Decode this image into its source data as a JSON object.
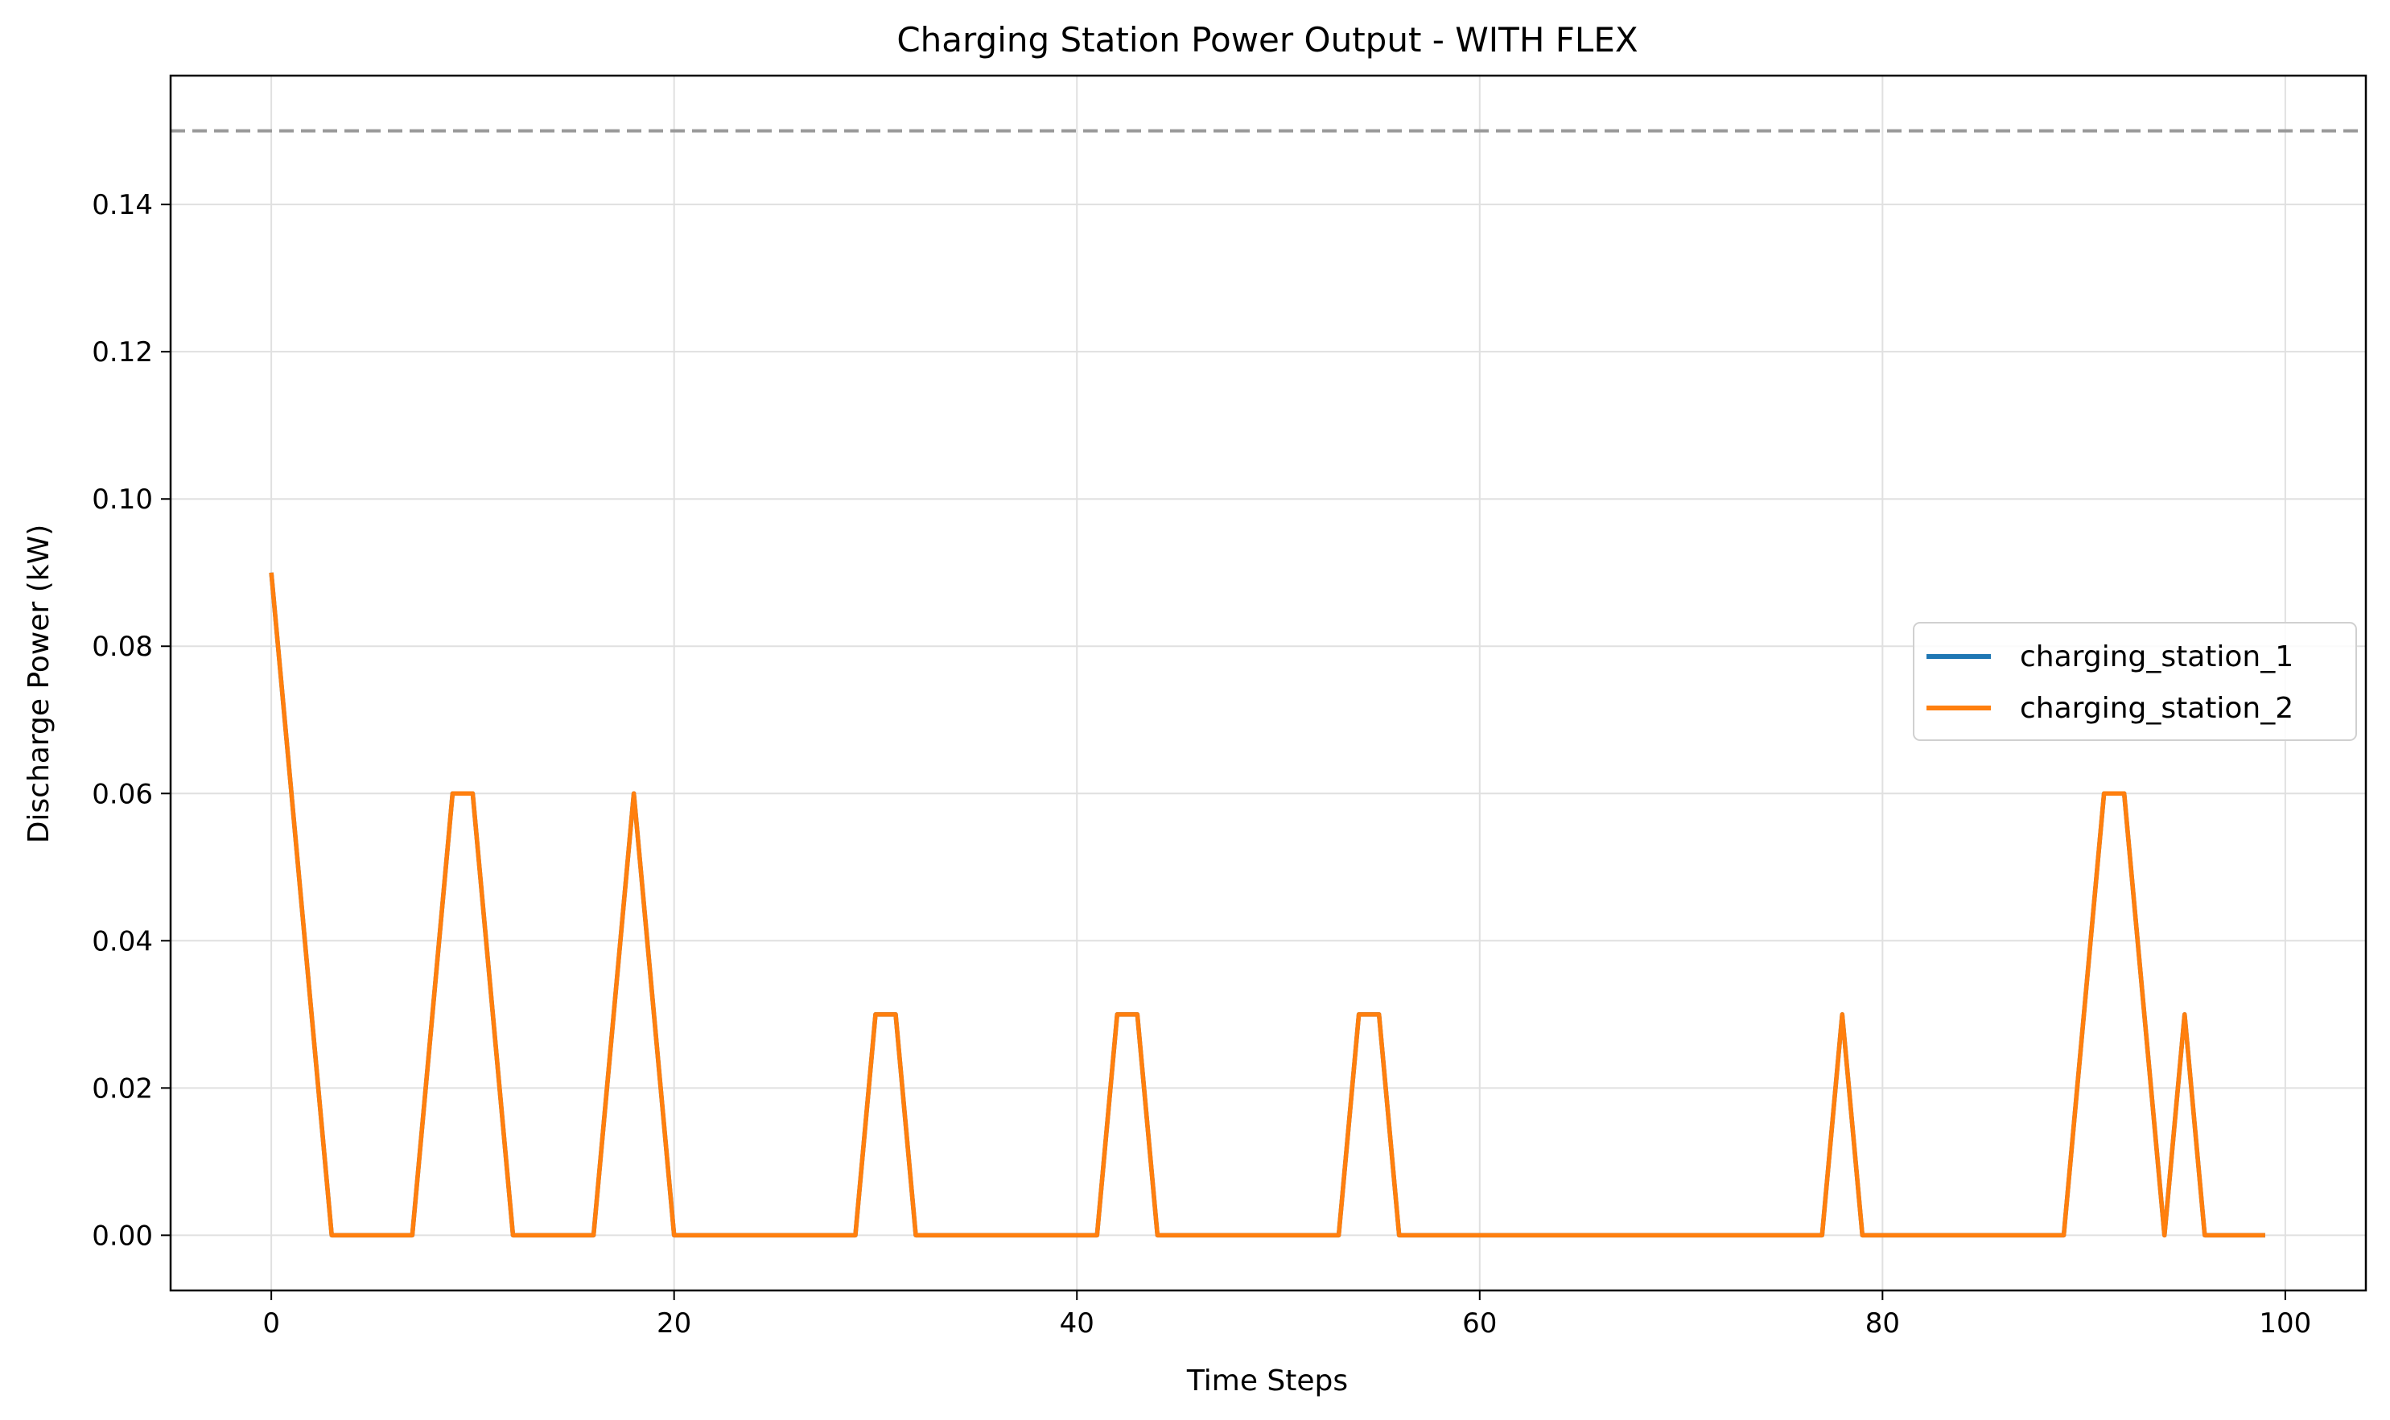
{
  "chart_data": {
    "type": "line",
    "title": "Charging Station Power Output - WITH FLEX",
    "xlabel": "Time Steps",
    "ylabel": "Discharge Power (kW)",
    "xlim": [
      -5,
      104
    ],
    "ylim": [
      -0.0075,
      0.1575
    ],
    "x_ticks": [
      0,
      20,
      40,
      60,
      80,
      100
    ],
    "y_ticks": [
      0.0,
      0.02,
      0.04,
      0.06,
      0.08,
      0.1,
      0.12,
      0.14
    ],
    "x_tick_labels": [
      "0",
      "20",
      "40",
      "60",
      "80",
      "100"
    ],
    "y_tick_labels": [
      "0.00",
      "0.02",
      "0.04",
      "0.06",
      "0.08",
      "0.10",
      "0.12",
      "0.14"
    ],
    "grid": true,
    "legend_position": "center-right",
    "reference_line": {
      "y": 0.15,
      "style": "dashed",
      "color": "#999999"
    },
    "series": [
      {
        "name": "charging_station_1",
        "color": "#1f77b4",
        "x": [
          0,
          1,
          2,
          3,
          4,
          5,
          6,
          7,
          8,
          9,
          10,
          11,
          12,
          13,
          14,
          15,
          16,
          17,
          18,
          19,
          20,
          21,
          22,
          23,
          24,
          25,
          26,
          27,
          28,
          29,
          30,
          31,
          32,
          33,
          34,
          35,
          36,
          37,
          38,
          39,
          40,
          41,
          42,
          43,
          44,
          45,
          46,
          47,
          48,
          49,
          50,
          51,
          52,
          53,
          54,
          55,
          56,
          57,
          58,
          59,
          60,
          61,
          62,
          63,
          64,
          65,
          66,
          67,
          68,
          69,
          70,
          71,
          72,
          73,
          74,
          75,
          76,
          77,
          78,
          79,
          80,
          81,
          82,
          83,
          84,
          85,
          86,
          87,
          88,
          89,
          90,
          91,
          92,
          93,
          94,
          95,
          96,
          97,
          98,
          99
        ],
        "values": [
          0.09,
          0.06,
          0.03,
          0,
          0,
          0,
          0,
          0,
          0.03,
          0.06,
          0.06,
          0.03,
          0,
          0,
          0,
          0,
          0,
          0.03,
          0.06,
          0.03,
          0,
          0,
          0,
          0,
          0,
          0,
          0,
          0,
          0,
          0,
          0.03,
          0.03,
          0,
          0,
          0,
          0,
          0,
          0,
          0,
          0,
          0,
          0,
          0.03,
          0.03,
          0,
          0,
          0,
          0,
          0,
          0,
          0,
          0,
          0,
          0,
          0.03,
          0.03,
          0,
          0,
          0,
          0,
          0,
          0,
          0,
          0,
          0,
          0,
          0,
          0,
          0,
          0,
          0,
          0,
          0,
          0,
          0,
          0,
          0,
          0,
          0.03,
          0,
          0,
          0,
          0,
          0,
          0,
          0,
          0,
          0,
          0,
          0,
          0.03,
          0.06,
          0.06,
          0.03,
          0,
          0.03,
          0,
          0,
          0,
          0
        ]
      },
      {
        "name": "charging_station_2",
        "color": "#ff7f0e",
        "x": [
          0,
          1,
          2,
          3,
          4,
          5,
          6,
          7,
          8,
          9,
          10,
          11,
          12,
          13,
          14,
          15,
          16,
          17,
          18,
          19,
          20,
          21,
          22,
          23,
          24,
          25,
          26,
          27,
          28,
          29,
          30,
          31,
          32,
          33,
          34,
          35,
          36,
          37,
          38,
          39,
          40,
          41,
          42,
          43,
          44,
          45,
          46,
          47,
          48,
          49,
          50,
          51,
          52,
          53,
          54,
          55,
          56,
          57,
          58,
          59,
          60,
          61,
          62,
          63,
          64,
          65,
          66,
          67,
          68,
          69,
          70,
          71,
          72,
          73,
          74,
          75,
          76,
          77,
          78,
          79,
          80,
          81,
          82,
          83,
          84,
          85,
          86,
          87,
          88,
          89,
          90,
          91,
          92,
          93,
          94,
          95,
          96,
          97,
          98,
          99
        ],
        "values": [
          0.09,
          0.06,
          0.03,
          0,
          0,
          0,
          0,
          0,
          0.03,
          0.06,
          0.06,
          0.03,
          0,
          0,
          0,
          0,
          0,
          0.03,
          0.06,
          0.03,
          0,
          0,
          0,
          0,
          0,
          0,
          0,
          0,
          0,
          0,
          0.03,
          0.03,
          0,
          0,
          0,
          0,
          0,
          0,
          0,
          0,
          0,
          0,
          0.03,
          0.03,
          0,
          0,
          0,
          0,
          0,
          0,
          0,
          0,
          0,
          0,
          0.03,
          0.03,
          0,
          0,
          0,
          0,
          0,
          0,
          0,
          0,
          0,
          0,
          0,
          0,
          0,
          0,
          0,
          0,
          0,
          0,
          0,
          0,
          0,
          0,
          0.03,
          0,
          0,
          0,
          0,
          0,
          0,
          0,
          0,
          0,
          0,
          0,
          0.03,
          0.06,
          0.06,
          0.03,
          0,
          0.03,
          0,
          0,
          0,
          0
        ]
      }
    ]
  }
}
